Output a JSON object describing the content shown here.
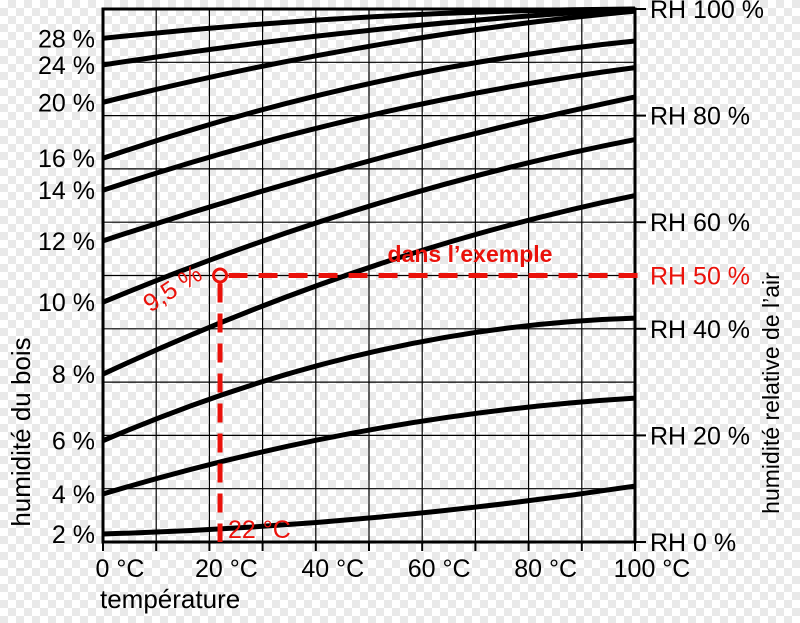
{
  "figure": {
    "checker_color": "#e9e9e9",
    "ink_color": "#000000",
    "accent_red": "#ea120b"
  },
  "chart_data": {
    "type": "line",
    "description_visible_text_only": true,
    "x_axis": {
      "label": "température",
      "range": [
        0,
        100
      ],
      "grid_step": 10,
      "tick_values": [
        0,
        20,
        40,
        60,
        80,
        100
      ],
      "tick_labels": [
        "0 °C",
        "20 °C",
        "40 °C",
        "60 °C",
        "80 °C",
        "100 °C"
      ]
    },
    "left_axis": {
      "label": "humidité du bois",
      "curve_labels": [
        "28 %",
        "24 %",
        "20 %",
        "16 %",
        "14 %",
        "12 %",
        "10 %",
        "8 %",
        "6 %",
        "4 %",
        "2 %"
      ]
    },
    "right_axis": {
      "label": "humidité relative de l’air",
      "range": [
        0,
        100
      ],
      "grid_step": 10,
      "tick_values": [
        100,
        80,
        60,
        40,
        20,
        0
      ],
      "tick_labels": [
        "RH 100 %",
        "RH 80 %",
        "RH 60 %",
        "RH 40 %",
        "RH 20 %",
        "RH 0 %"
      ]
    },
    "series": [
      {
        "name": "28 %",
        "iso_wood_moisture": 28,
        "points_t_rh": [
          [
            0,
            94.5
          ],
          [
            50,
            98.5
          ],
          [
            100,
            100
          ]
        ]
      },
      {
        "name": "24 %",
        "iso_wood_moisture": 24,
        "points_t_rh": [
          [
            0,
            89.5
          ],
          [
            50,
            96.0
          ],
          [
            100,
            100
          ]
        ]
      },
      {
        "name": "20 %",
        "iso_wood_moisture": 20,
        "points_t_rh": [
          [
            0,
            82.5
          ],
          [
            50,
            93.0
          ],
          [
            100,
            99.6
          ]
        ]
      },
      {
        "name": "16 %",
        "iso_wood_moisture": 16,
        "points_t_rh": [
          [
            0,
            72.0
          ],
          [
            50,
            86.0
          ],
          [
            100,
            94.0
          ]
        ]
      },
      {
        "name": "14 %",
        "iso_wood_moisture": 14,
        "points_t_rh": [
          [
            0,
            66.0
          ],
          [
            50,
            80.0
          ],
          [
            100,
            89.0
          ]
        ]
      },
      {
        "name": "12 %",
        "iso_wood_moisture": 12,
        "points_t_rh": [
          [
            0,
            56.5
          ],
          [
            50,
            71.5
          ],
          [
            100,
            83.5
          ]
        ]
      },
      {
        "name": "10 %",
        "iso_wood_moisture": 10,
        "points_t_rh": [
          [
            0,
            45.0
          ],
          [
            50,
            63.0
          ],
          [
            100,
            75.5
          ]
        ]
      },
      {
        "name": "8 %",
        "iso_wood_moisture": 8,
        "points_t_rh": [
          [
            0,
            31.5
          ],
          [
            50,
            51.5
          ],
          [
            100,
            65.0
          ]
        ]
      },
      {
        "name": "6 %",
        "iso_wood_moisture": 6,
        "points_t_rh": [
          [
            0,
            19.0
          ],
          [
            50,
            35.5
          ],
          [
            100,
            42.0
          ]
        ]
      },
      {
        "name": "4 %",
        "iso_wood_moisture": 4,
        "points_t_rh": [
          [
            0,
            9.0
          ],
          [
            50,
            21.0
          ],
          [
            100,
            27.0
          ]
        ]
      },
      {
        "name": "2 %",
        "iso_wood_moisture": 2,
        "points_t_rh": [
          [
            0,
            1.5
          ],
          [
            50,
            4.5
          ],
          [
            100,
            10.5
          ]
        ]
      }
    ],
    "example": {
      "note": "dans l’exemple",
      "temperature_c": 22,
      "temperature_label": "22 °C",
      "relative_humidity_pct": 50,
      "rh_label": "RH 50 %",
      "wood_moisture_label": "9,5 %"
    }
  }
}
